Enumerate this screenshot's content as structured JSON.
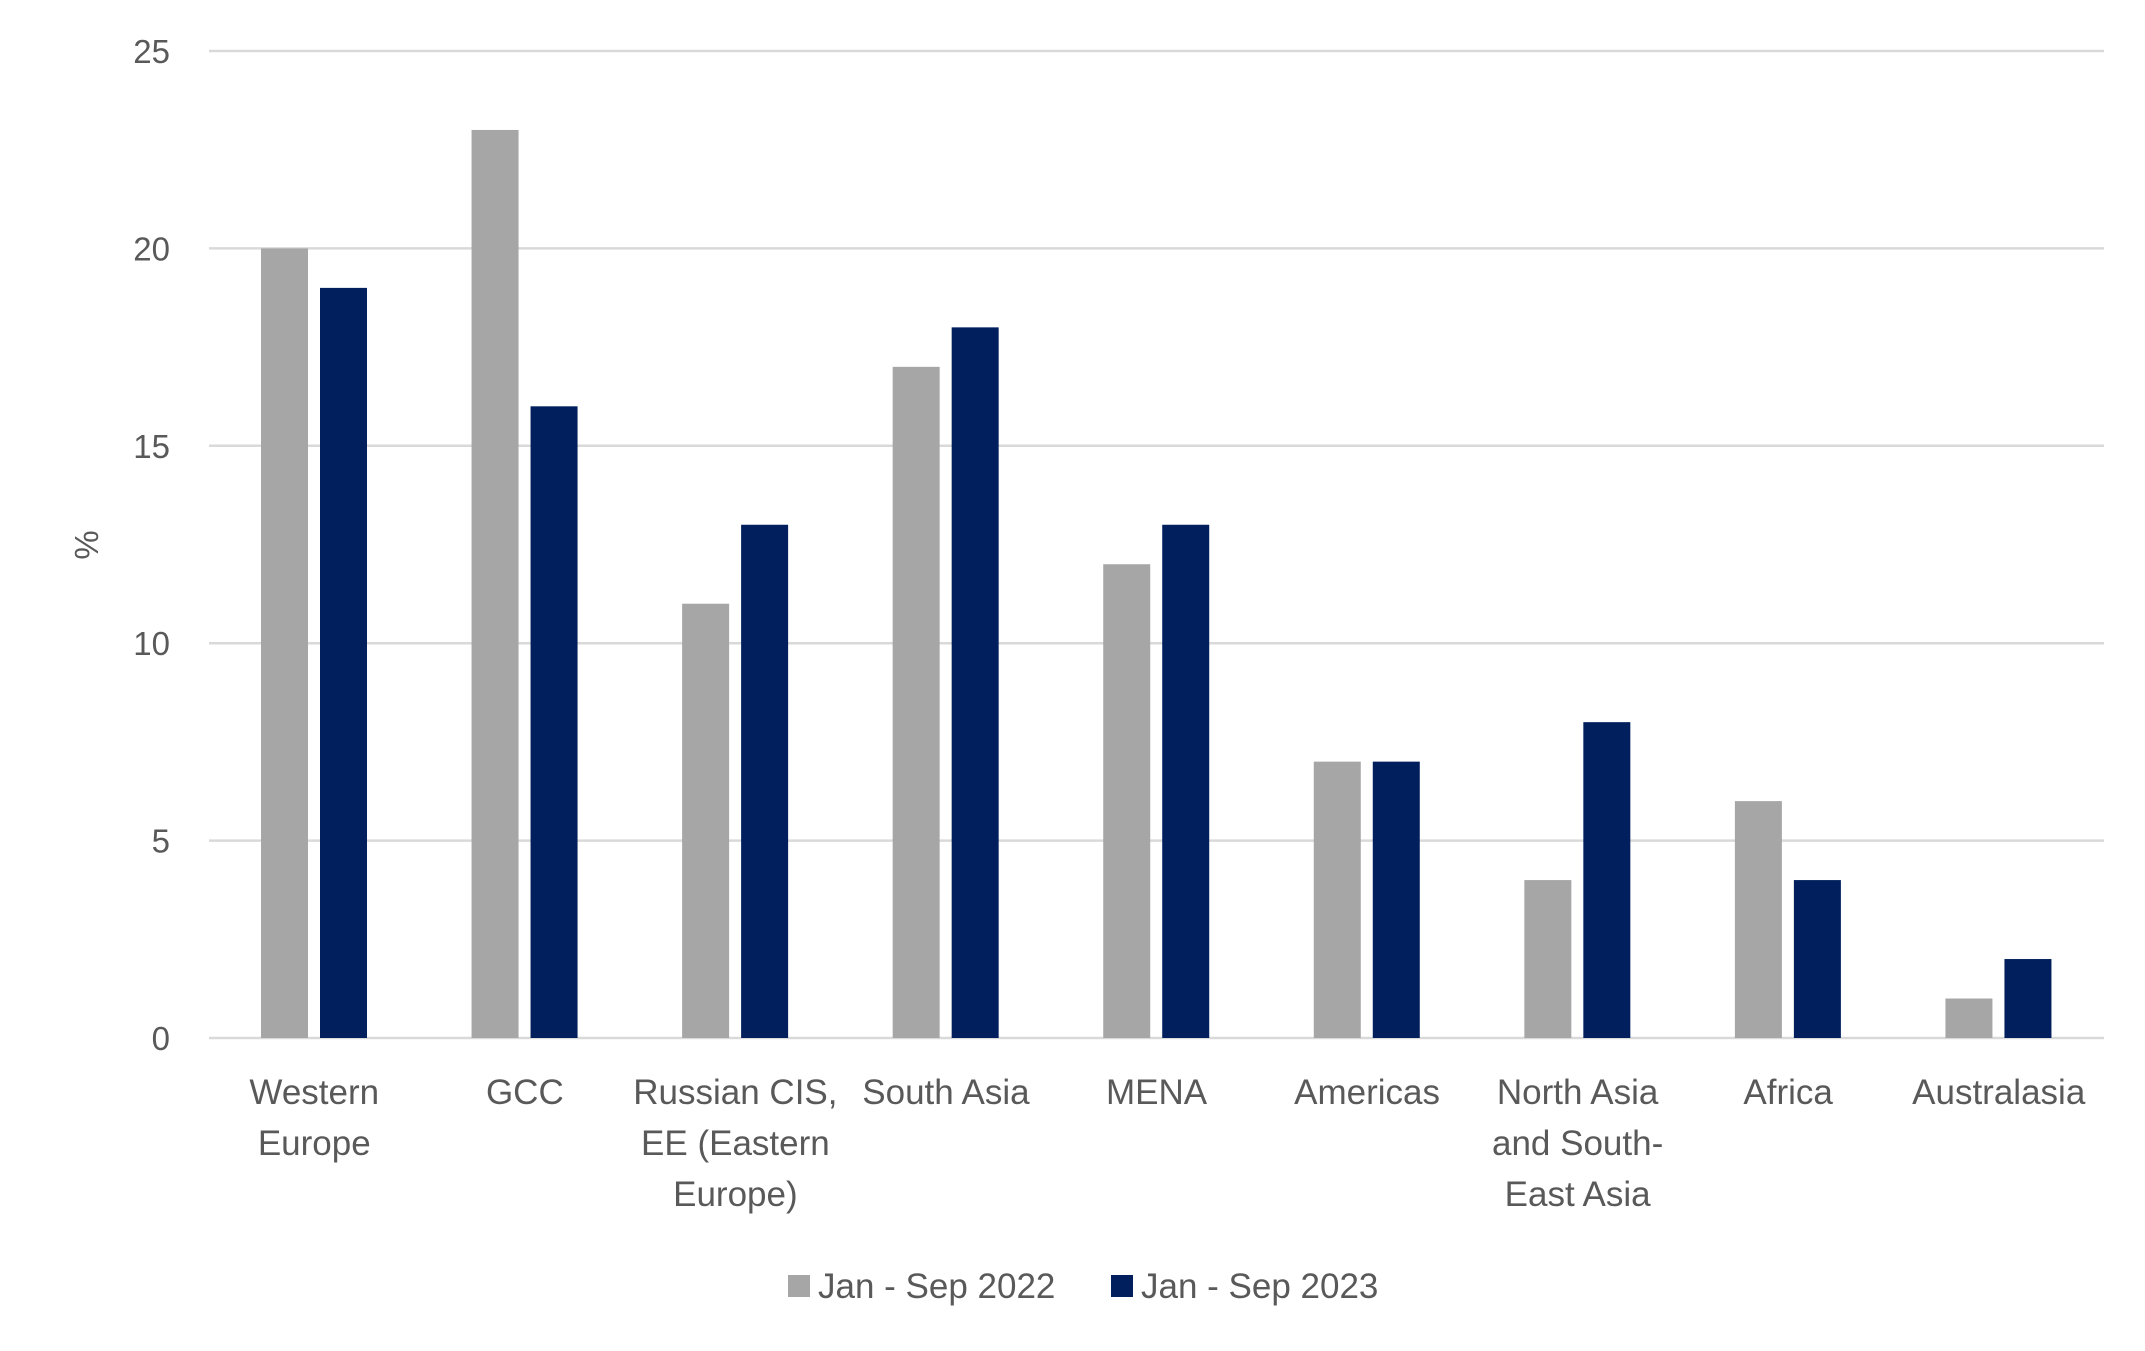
{
  "chart_data": {
    "type": "bar",
    "title": "",
    "xlabel": "",
    "ylabel": "%",
    "ylim": [
      0,
      25
    ],
    "yticks": [
      0,
      5,
      10,
      15,
      20,
      25
    ],
    "grid": true,
    "legend_position": "bottom",
    "categories": [
      [
        "Western",
        "Europe"
      ],
      [
        "GCC"
      ],
      [
        "Russian CIS,",
        "EE (Eastern",
        "Europe)"
      ],
      [
        "South Asia"
      ],
      [
        "MENA"
      ],
      [
        "Americas"
      ],
      [
        "North Asia",
        "and South-",
        "East Asia"
      ],
      [
        "Africa"
      ],
      [
        "Australasia"
      ]
    ],
    "series": [
      {
        "name": "Jan - Sep 2022",
        "color": "#A6A6A6",
        "values": [
          20,
          23,
          11,
          17,
          12,
          7,
          4,
          6,
          1
        ]
      },
      {
        "name": "Jan - Sep 2023",
        "color": "#001F5C",
        "values": [
          19,
          16,
          13,
          18,
          13,
          7,
          8,
          4,
          2
        ]
      }
    ]
  }
}
